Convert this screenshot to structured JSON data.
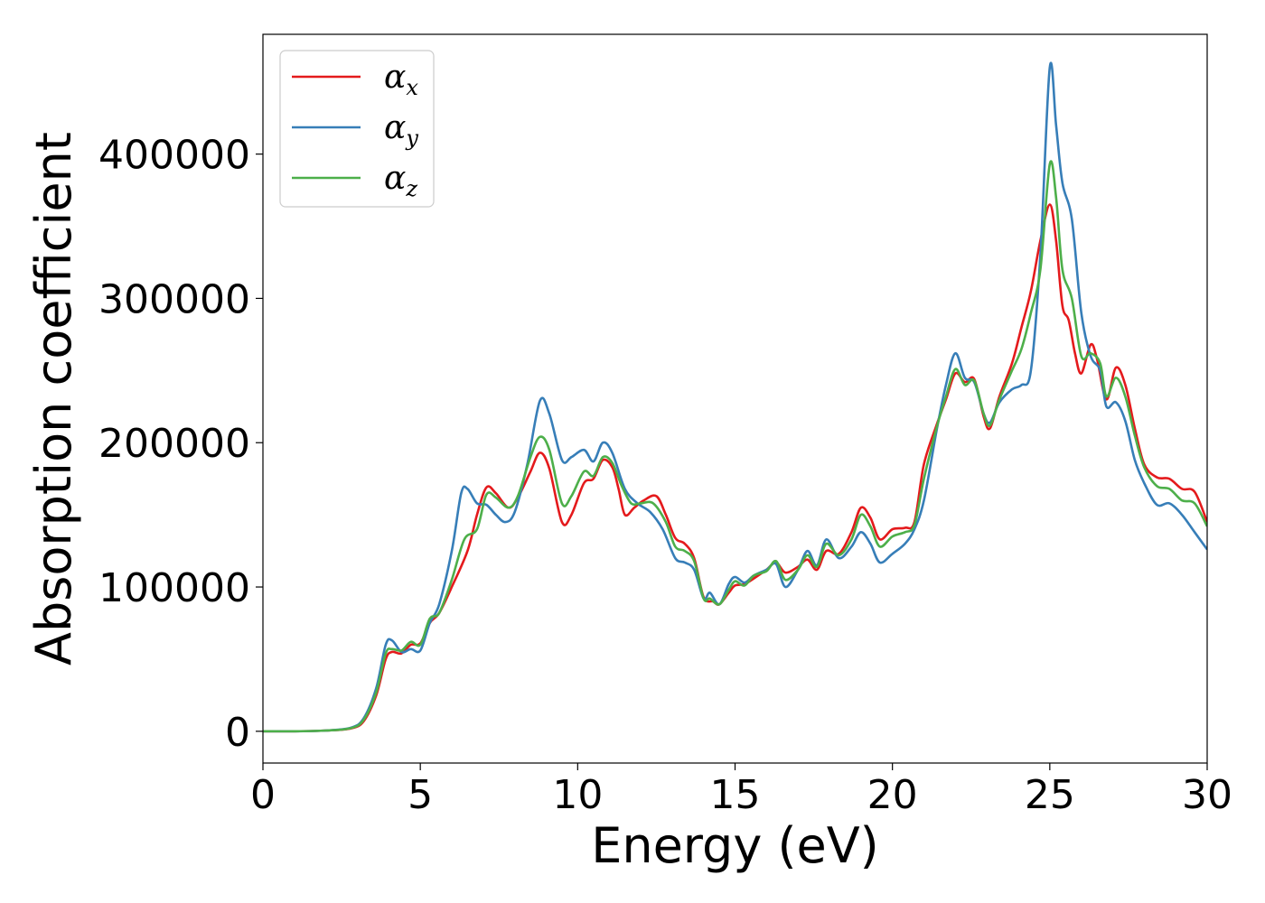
{
  "chart_data": {
    "type": "line",
    "xlabel": "Energy (eV)",
    "ylabel": "Absorption coefficient",
    "xlim": [
      0,
      30
    ],
    "ylim": [
      -22000,
      483000
    ],
    "xticks": [
      0,
      5,
      10,
      15,
      20,
      25,
      30
    ],
    "yticks": [
      0,
      100000,
      200000,
      300000,
      400000
    ],
    "grid": false,
    "legend": {
      "placement": "top-left"
    },
    "series": [
      {
        "name": "α",
        "subscript": "x",
        "color": "#e41a1c",
        "points": [
          [
            0,
            0
          ],
          [
            1,
            0
          ],
          [
            2,
            500
          ],
          [
            2.8,
            2000
          ],
          [
            3.2,
            7000
          ],
          [
            3.6,
            25000
          ],
          [
            3.9,
            50000
          ],
          [
            4.1,
            55000
          ],
          [
            4.4,
            54000
          ],
          [
            4.7,
            60000
          ],
          [
            5.0,
            61000
          ],
          [
            5.3,
            75000
          ],
          [
            5.6,
            82000
          ],
          [
            6.0,
            100000
          ],
          [
            6.5,
            125000
          ],
          [
            6.8,
            150000
          ],
          [
            7.1,
            169000
          ],
          [
            7.4,
            165000
          ],
          [
            7.8,
            155000
          ],
          [
            8.1,
            162000
          ],
          [
            8.5,
            180000
          ],
          [
            8.8,
            193000
          ],
          [
            9.1,
            182000
          ],
          [
            9.5,
            145000
          ],
          [
            9.8,
            150000
          ],
          [
            10.2,
            172000
          ],
          [
            10.5,
            175000
          ],
          [
            10.8,
            188000
          ],
          [
            11.1,
            183000
          ],
          [
            11.3,
            168000
          ],
          [
            11.5,
            150000
          ],
          [
            11.8,
            155000
          ],
          [
            12.1,
            160000
          ],
          [
            12.5,
            163000
          ],
          [
            12.8,
            150000
          ],
          [
            13.1,
            134000
          ],
          [
            13.4,
            130000
          ],
          [
            13.7,
            120000
          ],
          [
            14.0,
            93000
          ],
          [
            14.3,
            90000
          ],
          [
            14.5,
            88000
          ],
          [
            14.8,
            96000
          ],
          [
            15.0,
            101000
          ],
          [
            15.3,
            102000
          ],
          [
            15.6,
            106000
          ],
          [
            16.0,
            112000
          ],
          [
            16.3,
            117000
          ],
          [
            16.6,
            110000
          ],
          [
            17.0,
            114000
          ],
          [
            17.3,
            119000
          ],
          [
            17.6,
            112000
          ],
          [
            17.9,
            125000
          ],
          [
            18.3,
            123000
          ],
          [
            18.7,
            138000
          ],
          [
            19.0,
            155000
          ],
          [
            19.3,
            148000
          ],
          [
            19.6,
            133000
          ],
          [
            20.0,
            140000
          ],
          [
            20.4,
            141000
          ],
          [
            20.7,
            145000
          ],
          [
            21.0,
            185000
          ],
          [
            21.4,
            212000
          ],
          [
            21.7,
            230000
          ],
          [
            22.0,
            248000
          ],
          [
            22.3,
            242000
          ],
          [
            22.6,
            244000
          ],
          [
            22.9,
            218000
          ],
          [
            23.1,
            210000
          ],
          [
            23.4,
            232000
          ],
          [
            23.8,
            255000
          ],
          [
            24.1,
            280000
          ],
          [
            24.4,
            305000
          ],
          [
            24.7,
            340000
          ],
          [
            25.0,
            365000
          ],
          [
            25.2,
            340000
          ],
          [
            25.4,
            295000
          ],
          [
            25.6,
            285000
          ],
          [
            25.8,
            262000
          ],
          [
            26.0,
            248000
          ],
          [
            26.3,
            268000
          ],
          [
            26.5,
            258000
          ],
          [
            26.8,
            230000
          ],
          [
            27.1,
            252000
          ],
          [
            27.4,
            240000
          ],
          [
            27.7,
            210000
          ],
          [
            28.0,
            185000
          ],
          [
            28.4,
            176000
          ],
          [
            28.8,
            175000
          ],
          [
            29.2,
            168000
          ],
          [
            29.6,
            166000
          ],
          [
            30.0,
            145000
          ]
        ]
      },
      {
        "name": "α",
        "subscript": "y",
        "color": "#377eb8",
        "points": [
          [
            0,
            0
          ],
          [
            1,
            0
          ],
          [
            2,
            500
          ],
          [
            2.8,
            2500
          ],
          [
            3.2,
            9000
          ],
          [
            3.6,
            30000
          ],
          [
            3.9,
            60000
          ],
          [
            4.1,
            63000
          ],
          [
            4.4,
            55000
          ],
          [
            4.7,
            57000
          ],
          [
            5.0,
            56000
          ],
          [
            5.3,
            75000
          ],
          [
            5.6,
            88000
          ],
          [
            6.0,
            125000
          ],
          [
            6.3,
            165000
          ],
          [
            6.5,
            168000
          ],
          [
            6.8,
            158000
          ],
          [
            7.1,
            157000
          ],
          [
            7.4,
            150000
          ],
          [
            7.7,
            145000
          ],
          [
            8.0,
            152000
          ],
          [
            8.4,
            185000
          ],
          [
            8.8,
            229000
          ],
          [
            9.1,
            220000
          ],
          [
            9.5,
            188000
          ],
          [
            9.8,
            190000
          ],
          [
            10.2,
            195000
          ],
          [
            10.5,
            187000
          ],
          [
            10.8,
            200000
          ],
          [
            11.1,
            193000
          ],
          [
            11.5,
            168000
          ],
          [
            11.9,
            158000
          ],
          [
            12.3,
            152000
          ],
          [
            12.7,
            140000
          ],
          [
            13.1,
            120000
          ],
          [
            13.4,
            117000
          ],
          [
            13.7,
            112000
          ],
          [
            14.0,
            92000
          ],
          [
            14.2,
            96000
          ],
          [
            14.5,
            88000
          ],
          [
            14.8,
            102000
          ],
          [
            15.0,
            107000
          ],
          [
            15.3,
            103000
          ],
          [
            15.6,
            108000
          ],
          [
            16.0,
            112000
          ],
          [
            16.3,
            116000
          ],
          [
            16.6,
            100000
          ],
          [
            17.0,
            112000
          ],
          [
            17.3,
            125000
          ],
          [
            17.6,
            115000
          ],
          [
            17.9,
            133000
          ],
          [
            18.3,
            120000
          ],
          [
            18.7,
            128000
          ],
          [
            19.0,
            138000
          ],
          [
            19.3,
            130000
          ],
          [
            19.6,
            117000
          ],
          [
            20.0,
            123000
          ],
          [
            20.4,
            130000
          ],
          [
            20.7,
            140000
          ],
          [
            21.0,
            160000
          ],
          [
            21.4,
            208000
          ],
          [
            21.7,
            240000
          ],
          [
            22.0,
            262000
          ],
          [
            22.3,
            245000
          ],
          [
            22.6,
            242000
          ],
          [
            22.9,
            220000
          ],
          [
            23.1,
            214000
          ],
          [
            23.4,
            228000
          ],
          [
            23.8,
            237000
          ],
          [
            24.1,
            240000
          ],
          [
            24.4,
            250000
          ],
          [
            24.7,
            330000
          ],
          [
            25.0,
            460000
          ],
          [
            25.2,
            420000
          ],
          [
            25.4,
            380000
          ],
          [
            25.7,
            355000
          ],
          [
            26.0,
            290000
          ],
          [
            26.3,
            260000
          ],
          [
            26.6,
            250000
          ],
          [
            26.8,
            225000
          ],
          [
            27.1,
            228000
          ],
          [
            27.4,
            215000
          ],
          [
            27.7,
            188000
          ],
          [
            28.0,
            172000
          ],
          [
            28.4,
            157000
          ],
          [
            28.8,
            158000
          ],
          [
            29.2,
            150000
          ],
          [
            29.6,
            138000
          ],
          [
            30.0,
            126000
          ]
        ]
      },
      {
        "name": "α",
        "subscript": "z",
        "color": "#4daf4a",
        "points": [
          [
            0,
            0
          ],
          [
            1,
            0
          ],
          [
            2,
            500
          ],
          [
            2.8,
            2200
          ],
          [
            3.2,
            8000
          ],
          [
            3.6,
            27000
          ],
          [
            3.9,
            54000
          ],
          [
            4.1,
            57000
          ],
          [
            4.4,
            56000
          ],
          [
            4.7,
            62000
          ],
          [
            5.0,
            60000
          ],
          [
            5.3,
            78000
          ],
          [
            5.6,
            82000
          ],
          [
            6.0,
            105000
          ],
          [
            6.4,
            133000
          ],
          [
            6.8,
            140000
          ],
          [
            7.1,
            164000
          ],
          [
            7.4,
            162000
          ],
          [
            7.8,
            155000
          ],
          [
            8.1,
            163000
          ],
          [
            8.5,
            190000
          ],
          [
            8.8,
            204000
          ],
          [
            9.1,
            195000
          ],
          [
            9.5,
            158000
          ],
          [
            9.8,
            163000
          ],
          [
            10.2,
            180000
          ],
          [
            10.5,
            177000
          ],
          [
            10.8,
            190000
          ],
          [
            11.1,
            186000
          ],
          [
            11.4,
            170000
          ],
          [
            11.7,
            158000
          ],
          [
            12.0,
            158000
          ],
          [
            12.4,
            158000
          ],
          [
            12.8,
            145000
          ],
          [
            13.1,
            128000
          ],
          [
            13.4,
            125000
          ],
          [
            13.7,
            118000
          ],
          [
            14.0,
            92000
          ],
          [
            14.2,
            92000
          ],
          [
            14.5,
            88000
          ],
          [
            14.8,
            98000
          ],
          [
            15.0,
            104000
          ],
          [
            15.3,
            101000
          ],
          [
            15.6,
            108000
          ],
          [
            16.0,
            111000
          ],
          [
            16.3,
            118000
          ],
          [
            16.6,
            105000
          ],
          [
            17.0,
            112000
          ],
          [
            17.3,
            122000
          ],
          [
            17.6,
            114000
          ],
          [
            17.9,
            130000
          ],
          [
            18.3,
            122000
          ],
          [
            18.7,
            133000
          ],
          [
            19.0,
            150000
          ],
          [
            19.3,
            142000
          ],
          [
            19.6,
            128000
          ],
          [
            20.0,
            135000
          ],
          [
            20.4,
            138000
          ],
          [
            20.7,
            143000
          ],
          [
            21.0,
            175000
          ],
          [
            21.4,
            210000
          ],
          [
            21.7,
            232000
          ],
          [
            22.0,
            251000
          ],
          [
            22.3,
            240000
          ],
          [
            22.6,
            243000
          ],
          [
            22.9,
            220000
          ],
          [
            23.1,
            212000
          ],
          [
            23.4,
            230000
          ],
          [
            23.8,
            250000
          ],
          [
            24.1,
            265000
          ],
          [
            24.4,
            290000
          ],
          [
            24.7,
            320000
          ],
          [
            25.0,
            393000
          ],
          [
            25.2,
            370000
          ],
          [
            25.4,
            320000
          ],
          [
            25.7,
            300000
          ],
          [
            26.0,
            260000
          ],
          [
            26.3,
            262000
          ],
          [
            26.6,
            255000
          ],
          [
            26.8,
            232000
          ],
          [
            27.1,
            245000
          ],
          [
            27.4,
            232000
          ],
          [
            27.7,
            205000
          ],
          [
            28.0,
            183000
          ],
          [
            28.4,
            170000
          ],
          [
            28.8,
            168000
          ],
          [
            29.2,
            160000
          ],
          [
            29.6,
            158000
          ],
          [
            30.0,
            142000
          ]
        ]
      }
    ]
  }
}
